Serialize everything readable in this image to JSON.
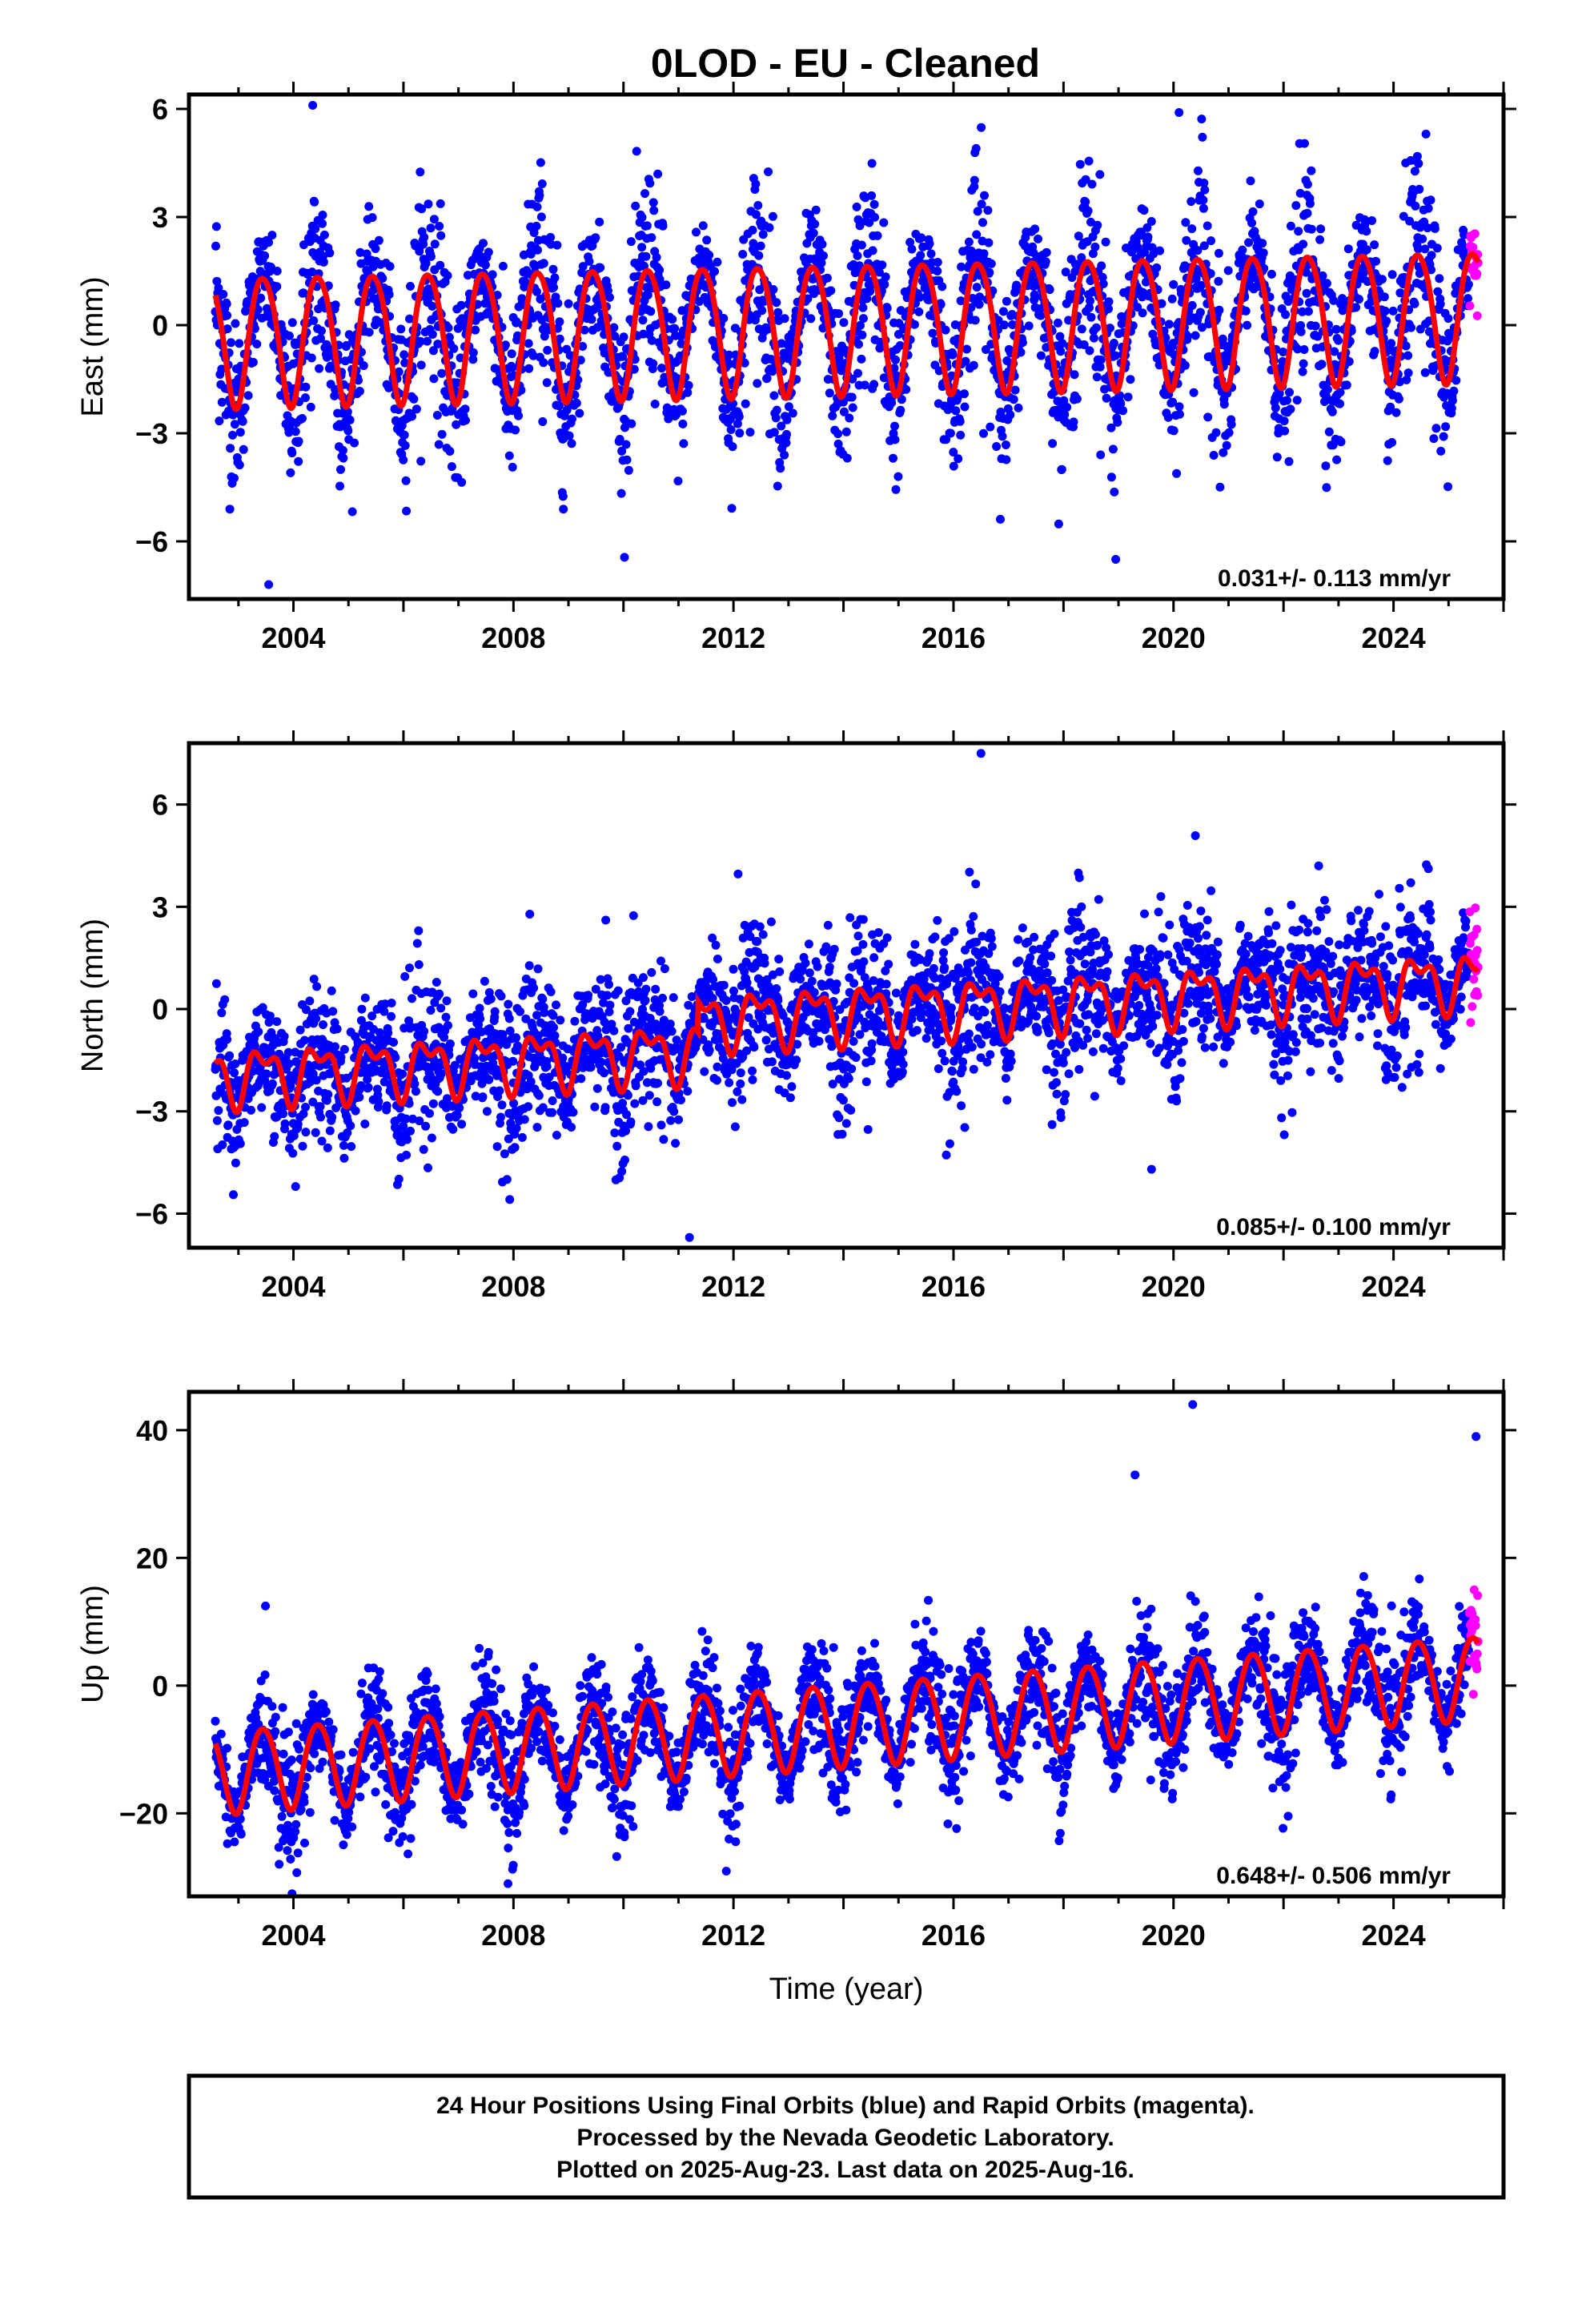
{
  "title": "0LOD  - EU - Cleaned",
  "footer_lines": [
    "24 Hour Positions Using Final Orbits (blue) and Rapid Orbits (magenta).",
    "Processed by the Nevada Geodetic Laboratory.",
    "Plotted on 2025-Aug-23. Last data on 2025-Aug-16."
  ],
  "colors": {
    "final": "#0000ff",
    "rapid": "#ff00ff",
    "model": "#ff0000"
  },
  "chart_data": [
    {
      "type": "scatter",
      "ylabel": "East (mm)",
      "xlabel": "",
      "xlim": [
        2002.1,
        2026.0
      ],
      "ylim": [
        -7.6,
        6.4
      ],
      "xticks": [
        2004,
        2008,
        2012,
        2016,
        2020,
        2024
      ],
      "yticks": [
        -6,
        -3,
        0,
        3,
        6
      ],
      "ytick_labels": [
        "−6",
        "−3",
        "0",
        "3",
        "6"
      ],
      "rate_label": "0.031+/- 0.113 mm/yr",
      "data_start": 2002.58,
      "data_end": 2025.54,
      "rapid_start": 2025.38,
      "model": {
        "offset": 0.0,
        "trend": 0.031,
        "annual_amp": 1.8,
        "semiannual_amp": 0.2,
        "steps": []
      },
      "scatter_sd": 1.1,
      "extremes": [
        [
          2004.35,
          6.1
        ],
        [
          2003.55,
          -7.2
        ],
        [
          2018.95,
          -6.5
        ],
        [
          2020.1,
          5.9
        ]
      ]
    },
    {
      "type": "scatter",
      "ylabel": "North (mm)",
      "xlabel": "",
      "xlim": [
        2002.1,
        2026.0
      ],
      "ylim": [
        -7.0,
        7.8
      ],
      "xticks": [
        2004,
        2008,
        2012,
        2016,
        2020,
        2024
      ],
      "yticks": [
        -6,
        -3,
        0,
        3,
        6
      ],
      "ytick_labels": [
        "−6",
        "−3",
        "0",
        "3",
        "6"
      ],
      "rate_label": "0.085+/- 0.100 mm/yr",
      "data_start": 2002.58,
      "data_end": 2025.54,
      "rapid_start": 2025.38,
      "model": {
        "offset": -1.0,
        "trend": 0.085,
        "annual_amp": 0.7,
        "semiannual_amp": 0.4,
        "steps": [
          [
            2011.35,
            0.9
          ]
        ]
      },
      "scatter_sd": 1.0,
      "extremes": [
        [
          2016.5,
          7.5
        ],
        [
          2011.2,
          -6.7
        ],
        [
          2019.6,
          -4.7
        ]
      ]
    },
    {
      "type": "scatter",
      "ylabel": "Up (mm)",
      "xlabel": "Time (year)",
      "xlim": [
        2002.1,
        2026.0
      ],
      "ylim": [
        -33,
        46
      ],
      "xticks": [
        2004,
        2008,
        2012,
        2016,
        2020,
        2024
      ],
      "yticks": [
        -20,
        0,
        20,
        40
      ],
      "ytick_labels": [
        "−20",
        "0",
        "20",
        "40"
      ],
      "rate_label": "0.648+/- 0.506 mm/yr",
      "data_start": 2002.58,
      "data_end": 2025.54,
      "rapid_start": 2025.38,
      "model": {
        "offset": -6.0,
        "trend": 0.648,
        "annual_amp": 6.5,
        "semiannual_amp": 0.5,
        "steps": []
      },
      "scatter_sd": 4.0,
      "extremes": [
        [
          2020.35,
          44
        ],
        [
          2007.9,
          -31
        ],
        [
          2025.5,
          39
        ],
        [
          2019.3,
          33
        ]
      ]
    }
  ]
}
